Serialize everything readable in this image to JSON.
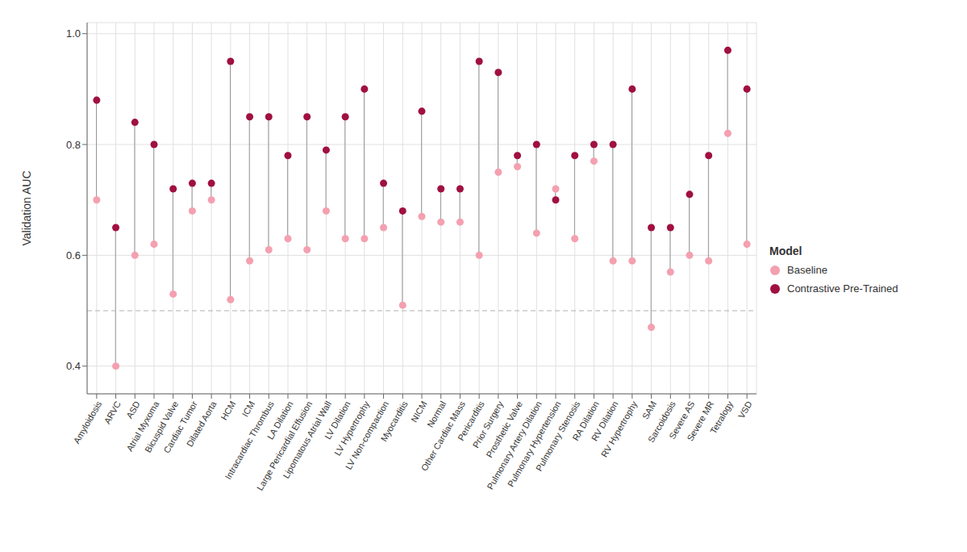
{
  "chart_data": {
    "type": "dumbbell",
    "y_label": "Validation AUC",
    "legend_title": "Model",
    "legend": "right",
    "grid": true,
    "categories": [
      "Amyloidosis",
      "ARVC",
      "ASD",
      "Atrial Myxoma",
      "Bicuspid Valve",
      "Cardiac Tumor",
      "Dilated Aorta",
      "HCM",
      "ICM",
      "Intracardiac Thrombus",
      "LA Dilation",
      "Large Pericardial Effusion",
      "Lipomatous Atrial Wall",
      "LV Dilation",
      "LV Hypertrophy",
      "LV Non-compaction",
      "Myocarditis",
      "NICM",
      "Normal",
      "Other Cardiac Mass",
      "Pericarditis",
      "Prior Surgery",
      "Prosthetic Valve",
      "Pulmonary Artery Dilation",
      "Pulmonary Hypertension",
      "Pulmonary Stenosis",
      "RA Dilation",
      "RV Dilation",
      "RV Hypertrophy",
      "SAM",
      "Sarcoidosis",
      "Severe AS",
      "Severe MR",
      "Tetralogy",
      "VSD"
    ],
    "series": [
      {
        "name": "Baseline",
        "color": "#f4a0b0",
        "marker": "circle",
        "values": [
          0.7,
          0.4,
          0.6,
          0.62,
          0.53,
          0.68,
          0.7,
          0.52,
          0.59,
          0.61,
          0.63,
          0.61,
          0.68,
          0.63,
          0.63,
          0.65,
          0.51,
          0.67,
          0.66,
          0.66,
          0.6,
          0.75,
          0.76,
          0.64,
          0.72,
          0.63,
          0.77,
          0.59,
          0.59,
          0.47,
          0.57,
          0.6,
          0.59,
          0.82,
          0.62
        ]
      },
      {
        "name": "Contrastive Pre-Trained",
        "color": "#a01040",
        "marker": "circle",
        "values": [
          0.88,
          0.65,
          0.84,
          0.8,
          0.72,
          0.73,
          0.73,
          0.95,
          0.85,
          0.85,
          0.78,
          0.85,
          0.79,
          0.85,
          0.9,
          0.73,
          0.68,
          0.86,
          0.72,
          0.72,
          0.95,
          0.93,
          0.78,
          0.8,
          0.7,
          0.78,
          0.8,
          0.8,
          0.9,
          0.65,
          0.65,
          0.71,
          0.78,
          0.97,
          0.9
        ]
      }
    ],
    "reference_line": {
      "y": 0.5,
      "line_style": "dashed"
    },
    "ylim": [
      0.35,
      1.02
    ],
    "yticks": [
      0.4,
      0.6,
      0.8,
      {
        "value": 1.0,
        "label": "1.0"
      }
    ]
  }
}
